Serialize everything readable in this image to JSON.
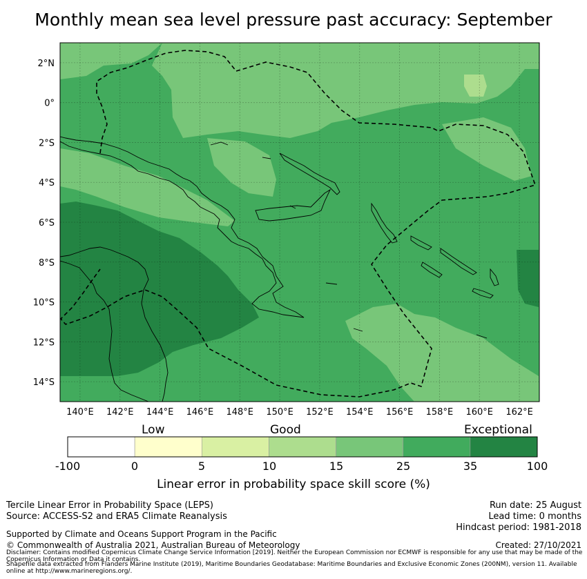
{
  "title": "Monthly mean sea level pressure past accuracy: September",
  "map": {
    "lon_range": [
      139,
      163
    ],
    "lat_range": [
      -15,
      3
    ],
    "lon_ticks": [
      "140°E",
      "142°E",
      "144°E",
      "146°E",
      "148°E",
      "150°E",
      "152°E",
      "154°E",
      "156°E",
      "158°E",
      "160°E",
      "162°E"
    ],
    "lat_ticks": [
      "2°N",
      "0°",
      "2°S",
      "4°S",
      "6°S",
      "8°S",
      "10°S",
      "12°S",
      "14°S"
    ],
    "grid": true,
    "background_color": "#42ab5d"
  },
  "colorbar": {
    "category_labels": [
      "Low",
      "Good",
      "Exceptional"
    ],
    "tick_labels": [
      "-100",
      "0",
      "5",
      "10",
      "15",
      "25",
      "35",
      "100"
    ],
    "colors": [
      "#ffffff",
      "#ffffcc",
      "#d9f0a3",
      "#addd8e",
      "#78c679",
      "#41ab5d",
      "#238443"
    ],
    "label": "Linear error in probability space skill score (%)"
  },
  "footer": {
    "line1": "Tercile Linear Error in Probability Space (LEPS)",
    "line2": "Source: ACCESS-S2 and ERA5 Climate Reanalysis",
    "line3": "Supported by Climate and Oceans Support Program in the Pacific",
    "line4": "© Commonwealth of Australia 2021, Australian Bureau of Meteorology",
    "run_date": "Run date: 25 August",
    "lead_time": "Lead time: 0 months",
    "hindcast": "Hindcast period: 1981-2018",
    "created": "Created: 27/10/2021",
    "disclaimer": "Disclaimer: Contains modified Copernicus Climate Change Service Information [2019]. Neither the European Commission nor ECMWF is responsible for any use that may be made of the Copernicus Information or Data it contains.",
    "shapefile": "Shapefile data extracted from Flanders Marine Institute (2019), Maritime Boundaries Geodatabase: Maritime Boundaries and Exclusive Economic Zones (200NM), version 11. Available online at http://www.marineregions.org/."
  }
}
